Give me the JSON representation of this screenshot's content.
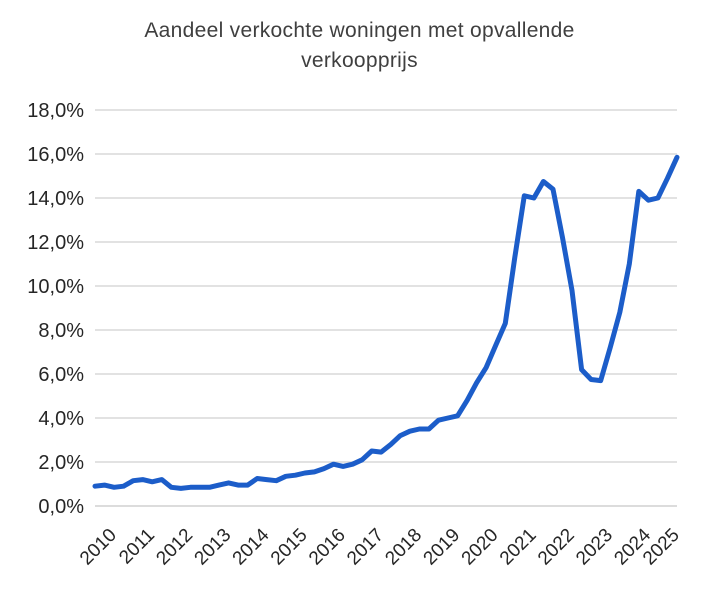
{
  "header": {
    "title_line1": "Aandeel verkochte woningen met opvallende",
    "title_line2": "verkoopprijs"
  },
  "chart_data": {
    "type": "line",
    "title": "Aandeel verkochte woningen met opvallende verkoopprijs",
    "x": [
      "2010Q1",
      "2010Q2",
      "2010Q3",
      "2010Q4",
      "2011Q1",
      "2011Q2",
      "2011Q3",
      "2011Q4",
      "2012Q1",
      "2012Q2",
      "2012Q3",
      "2012Q4",
      "2013Q1",
      "2013Q2",
      "2013Q3",
      "2013Q4",
      "2014Q1",
      "2014Q2",
      "2014Q3",
      "2014Q4",
      "2015Q1",
      "2015Q2",
      "2015Q3",
      "2015Q4",
      "2016Q1",
      "2016Q2",
      "2016Q3",
      "2016Q4",
      "2017Q1",
      "2017Q2",
      "2017Q3",
      "2017Q4",
      "2018Q1",
      "2018Q2",
      "2018Q3",
      "2018Q4",
      "2019Q1",
      "2019Q2",
      "2019Q3",
      "2019Q4",
      "2020Q1",
      "2020Q2",
      "2020Q3",
      "2020Q4",
      "2021Q1",
      "2021Q2",
      "2021Q3",
      "2021Q4",
      "2022Q1",
      "2022Q2",
      "2022Q3",
      "2022Q4",
      "2023Q1",
      "2023Q2",
      "2023Q3",
      "2023Q4",
      "2024Q1",
      "2024Q2",
      "2024Q3",
      "2024Q4",
      "2025Q1",
      "2025Q2"
    ],
    "series": [
      {
        "name": "Aandeel verkochte woningen met opvallende verkoopprijs",
        "values": [
          0.9,
          0.95,
          0.85,
          0.9,
          1.15,
          1.2,
          1.1,
          1.2,
          0.85,
          0.8,
          0.85,
          0.85,
          0.85,
          0.95,
          1.05,
          0.95,
          0.95,
          1.25,
          1.2,
          1.15,
          1.35,
          1.4,
          1.5,
          1.55,
          1.7,
          1.9,
          1.8,
          1.9,
          2.1,
          2.5,
          2.45,
          2.8,
          3.2,
          3.4,
          3.5,
          3.5,
          3.9,
          4.0,
          4.1,
          4.8,
          5.6,
          6.3,
          7.3,
          8.3,
          11.3,
          14.1,
          14.0,
          14.75,
          14.4,
          12.2,
          9.8,
          6.2,
          5.75,
          5.7,
          7.2,
          8.8,
          11.0,
          14.3,
          13.9,
          14.0,
          14.9,
          15.85
        ]
      }
    ],
    "x_tick_labels": [
      "2010",
      "2011",
      "2012",
      "2013",
      "2014",
      "2015",
      "2016",
      "2017",
      "2018",
      "2019",
      "2020",
      "2021",
      "2022",
      "2023",
      "2024",
      "2025"
    ],
    "y_tick_labels": [
      "0,0%",
      "2,0%",
      "4,0%",
      "6,0%",
      "8,0%",
      "10,0%",
      "12,0%",
      "14,0%",
      "16,0%",
      "18,0%"
    ],
    "ylim": [
      0,
      18
    ],
    "y_step": 2,
    "grid": "horizontal",
    "legend": "none",
    "line_color": "#1c5dc9",
    "gridline_color": "#d9d9d9",
    "axisline_color": "#d0d0d0",
    "tick_label_color": "#262626",
    "title_color": "#3f3f3f",
    "background_color": "#ffffff"
  }
}
